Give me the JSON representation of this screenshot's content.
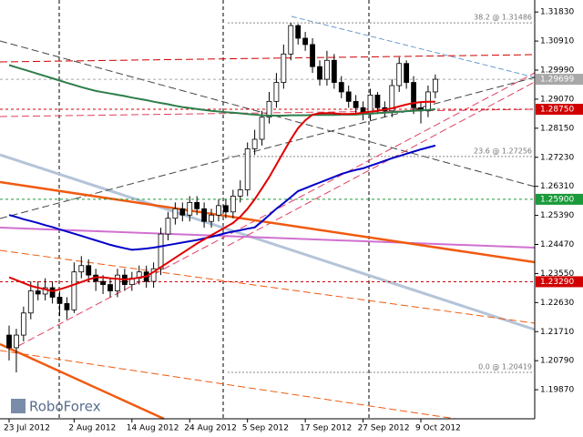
{
  "chart_data": {
    "type": "candlestick",
    "logo": "RoboForex",
    "categories": [
      "23 Jul 2012",
      null,
      null,
      null,
      null,
      null,
      null,
      null,
      null,
      "2 Aug 2012",
      null,
      null,
      null,
      null,
      null,
      null,
      null,
      "14 Aug 2012",
      null,
      null,
      null,
      null,
      null,
      null,
      null,
      "24 Aug 2012",
      null,
      null,
      null,
      null,
      null,
      null,
      null,
      "5 Sep 2012",
      null,
      null,
      null,
      null,
      null,
      null,
      null,
      "17 Sep 2012",
      null,
      null,
      null,
      null,
      null,
      null,
      null,
      "27 Sep 2012",
      null,
      null,
      null,
      null,
      null,
      null,
      null,
      "9 Oct 2012",
      null,
      null
    ],
    "open": [
      1.216,
      1.212,
      1.216,
      1.223,
      1.23,
      1.229,
      1.231,
      1.228,
      1.226,
      1.224,
      1.236,
      1.238,
      1.235,
      1.233,
      1.232,
      1.23,
      1.235,
      1.232,
      1.234,
      1.236,
      1.233,
      1.237,
      1.248,
      1.253,
      1.256,
      1.254,
      1.258,
      1.256,
      1.252,
      1.254,
      1.257,
      1.255,
      1.26,
      1.262,
      1.275,
      1.278,
      1.285,
      1.29,
      1.296,
      1.305,
      1.314,
      1.31,
      1.308,
      1.301,
      1.297,
      1.303,
      1.296,
      1.293,
      1.29,
      1.288,
      1.286,
      1.292,
      1.288,
      1.287,
      1.295,
      1.302,
      1.296,
      1.288,
      1.287,
      1.293
    ],
    "high": [
      1.219,
      1.218,
      1.225,
      1.233,
      1.233,
      1.234,
      1.233,
      1.23,
      1.228,
      1.239,
      1.241,
      1.24,
      1.237,
      1.235,
      1.234,
      1.237,
      1.237,
      1.236,
      1.238,
      1.238,
      1.239,
      1.25,
      1.255,
      1.258,
      1.258,
      1.26,
      1.26,
      1.258,
      1.256,
      1.259,
      1.259,
      1.262,
      1.265,
      1.277,
      1.281,
      1.287,
      1.293,
      1.299,
      1.308,
      1.3149,
      1.3145,
      1.312,
      1.31,
      1.303,
      1.306,
      1.305,
      1.298,
      1.295,
      1.292,
      1.29,
      1.294,
      1.293,
      1.29,
      1.297,
      1.304,
      1.303,
      1.298,
      1.29,
      1.295,
      1.2985
    ],
    "low": [
      1.208,
      1.2042,
      1.214,
      1.221,
      1.227,
      1.227,
      1.226,
      1.222,
      1.221,
      1.223,
      1.234,
      1.233,
      1.23,
      1.229,
      1.228,
      1.228,
      1.23,
      1.23,
      1.232,
      1.231,
      1.231,
      1.235,
      1.246,
      1.251,
      1.252,
      1.252,
      1.254,
      1.25,
      1.25,
      1.252,
      1.253,
      1.253,
      1.258,
      1.26,
      1.273,
      1.276,
      1.283,
      1.288,
      1.294,
      1.303,
      1.308,
      1.306,
      1.299,
      1.295,
      1.295,
      1.294,
      1.291,
      1.288,
      1.286,
      1.284,
      1.284,
      1.286,
      1.285,
      1.285,
      1.293,
      1.294,
      1.286,
      1.283,
      1.285,
      1.291
    ],
    "close": [
      1.212,
      1.216,
      1.223,
      1.23,
      1.229,
      1.231,
      1.228,
      1.226,
      1.224,
      1.236,
      1.238,
      1.235,
      1.233,
      1.232,
      1.23,
      1.235,
      1.232,
      1.234,
      1.236,
      1.233,
      1.237,
      1.248,
      1.253,
      1.256,
      1.254,
      1.258,
      1.256,
      1.252,
      1.254,
      1.257,
      1.255,
      1.26,
      1.262,
      1.275,
      1.278,
      1.285,
      1.29,
      1.296,
      1.305,
      1.314,
      1.31,
      1.308,
      1.301,
      1.297,
      1.303,
      1.296,
      1.293,
      1.29,
      1.288,
      1.286,
      1.292,
      1.288,
      1.287,
      1.295,
      1.302,
      1.296,
      1.288,
      1.287,
      1.293,
      1.297
    ],
    "up_color": "#ffffff",
    "down_color": "#000000",
    "series": [
      {
        "color": "#2e7d4a",
        "values": [
          1.3015,
          1.3008,
          1.3001,
          1.2994,
          1.2987,
          1.298,
          1.2973,
          1.2966,
          1.2959,
          1.2952,
          1.2945,
          1.2939,
          1.2933,
          1.2929,
          1.2925,
          1.2921,
          1.2917,
          1.2912,
          1.2908,
          1.2904,
          1.2899,
          1.2895,
          1.2891,
          1.2886,
          1.2882,
          1.2879,
          1.2876,
          1.2873,
          1.287,
          1.2868,
          1.2866,
          1.2864,
          1.2862,
          1.286,
          1.2858,
          1.2856,
          1.2855,
          1.2855,
          1.2855,
          1.2856,
          1.2856,
          1.2856,
          1.2857,
          1.2857,
          1.2857,
          1.2857,
          1.2858,
          1.2858,
          1.2858,
          1.286,
          1.2861,
          1.2863,
          1.2864,
          1.2866,
          1.2867,
          1.2869,
          1.287,
          1.2872,
          1.2873,
          1.2875
        ]
      },
      {
        "color": "#0000c8",
        "values": [
          1.254,
          1.2534,
          1.2527,
          1.2521,
          1.2515,
          1.2508,
          1.2502,
          1.2495,
          1.2488,
          1.2481,
          1.2474,
          1.2467,
          1.246,
          1.2453,
          1.2446,
          1.244,
          1.2435,
          1.243,
          1.2432,
          1.2434,
          1.2437,
          1.2441,
          1.2445,
          1.2449,
          1.2453,
          1.2457,
          1.2461,
          1.2466,
          1.2471,
          1.2477,
          1.2483,
          1.2488,
          1.2492,
          1.2497,
          1.2501,
          1.252,
          1.254,
          1.256,
          1.2578,
          1.2597,
          1.2616,
          1.2625,
          1.2634,
          1.2643,
          1.2652,
          1.2661,
          1.267,
          1.2677,
          1.2683,
          1.2688,
          1.2696,
          1.2704,
          1.2712,
          1.272,
          1.2727,
          1.2734,
          1.2741,
          1.2748,
          1.2754,
          1.276
        ]
      },
      {
        "color": "#e00000",
        "values": [
          1.2343,
          1.2334,
          1.2325,
          1.2316,
          1.231,
          1.2305,
          1.2299,
          1.2305,
          1.2312,
          1.232,
          1.2328,
          1.2336,
          1.2343,
          1.2343,
          1.234,
          1.2338,
          1.2336,
          1.2338,
          1.2342,
          1.2346,
          1.236,
          1.2375,
          1.239,
          1.2405,
          1.242,
          1.2435,
          1.245,
          1.2463,
          1.2476,
          1.2489,
          1.2502,
          1.2515,
          1.2535,
          1.256,
          1.259,
          1.2625,
          1.266,
          1.27,
          1.274,
          1.278,
          1.2815,
          1.284,
          1.2858,
          1.2862,
          1.2863,
          1.2862,
          1.286,
          1.286,
          1.2861,
          1.2864,
          1.2867,
          1.287,
          1.2874,
          1.2878,
          1.2884,
          1.289,
          1.2895,
          1.2898,
          1.2899,
          1.2899
        ]
      }
    ],
    "ylim": [
      1.1895,
      1.3221
    ],
    "yticks": [
      {
        "value": 1.3183,
        "label": "1.31830"
      },
      {
        "value": 1.3091,
        "label": "1.30910"
      },
      {
        "value": 1.2999,
        "label": "1.29990"
      },
      {
        "value": 1.2907,
        "label": "1.29070"
      },
      {
        "value": 1.2815,
        "label": "1.28150"
      },
      {
        "value": 1.2723,
        "label": "1.27230"
      },
      {
        "value": 1.2631,
        "label": "1.26310"
      },
      {
        "value": 1.2539,
        "label": "1.25390"
      },
      {
        "value": 1.2447,
        "label": "1.24470"
      },
      {
        "value": 1.2355,
        "label": "1.23550"
      },
      {
        "value": 1.2263,
        "label": "1.22630"
      },
      {
        "value": 1.2171,
        "label": "1.21710"
      },
      {
        "value": 1.2079,
        "label": "1.20790"
      },
      {
        "value": 1.1987,
        "label": "1.19870"
      }
    ],
    "price_tags": [
      {
        "value": 1.29699,
        "label": "1.29699",
        "color": "#a8a8a8"
      },
      {
        "value": 1.2875,
        "label": "1.28750",
        "color": "#d00000"
      },
      {
        "value": 1.259,
        "label": "1.25900",
        "color": "#1a9a3a"
      },
      {
        "value": 1.2329,
        "label": "1.23290",
        "color": "#d00000"
      }
    ],
    "fib_levels": [
      {
        "value": 1.31486,
        "label": "38.2 @ 1.31486"
      },
      {
        "value": 1.27256,
        "label": "23.6 @ 1.27256"
      },
      {
        "value": 1.20419,
        "label": "0.0 @ 1.20419"
      }
    ]
  }
}
